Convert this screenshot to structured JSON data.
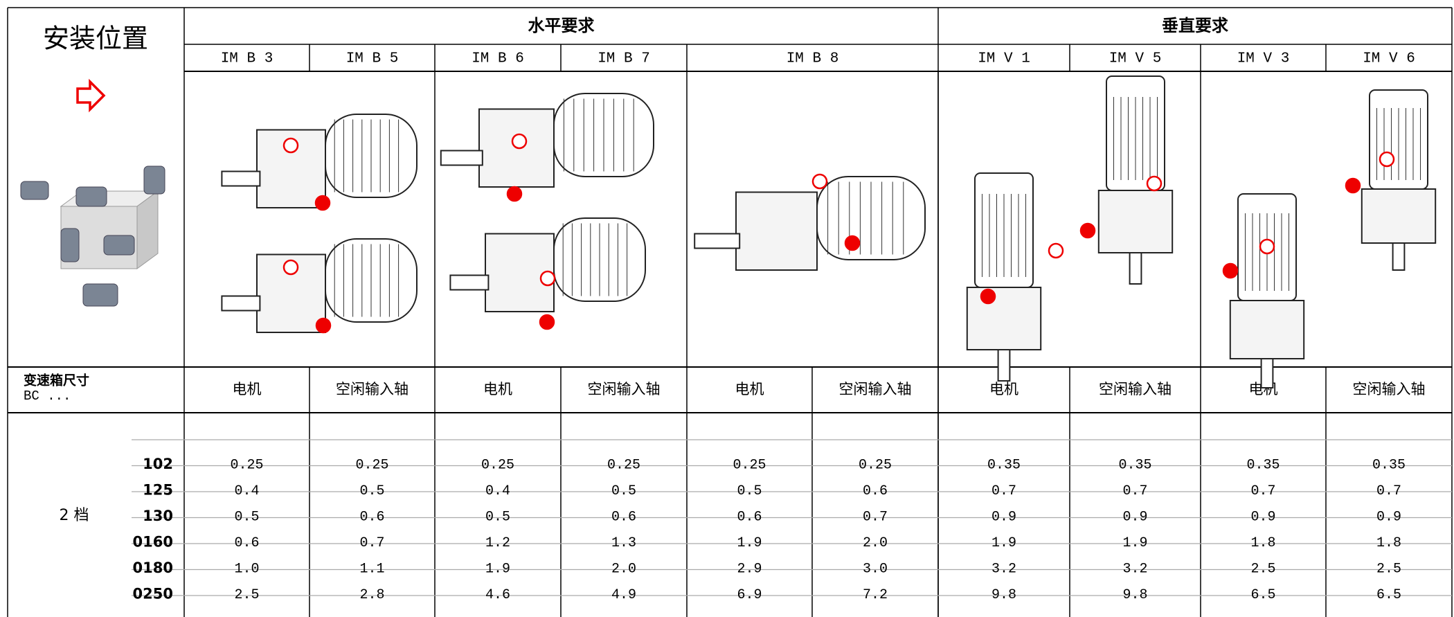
{
  "header": {
    "title": "安装位置",
    "groups": [
      "水平要求",
      "垂直要求"
    ],
    "positions": [
      "IM B 3",
      "IM B 5",
      "IM B 6",
      "IM B 7",
      "IM B 8",
      "IM V 1",
      "IM V 5",
      "IM V 3",
      "IM V 6"
    ]
  },
  "table": {
    "size_label": [
      "变速箱尺寸",
      "BC ..."
    ],
    "columns": [
      "电机",
      "空闲输入轴",
      "电机",
      "空闲输入轴",
      "电机",
      "空闲输入轴",
      "电机",
      "空闲输入轴",
      "电机",
      "空闲输入轴"
    ],
    "stage": "2 档",
    "sizes": [
      "102",
      "125",
      "130",
      "0160",
      "0180",
      "0250"
    ],
    "rows": [
      [
        "0.25",
        "0.25",
        "0.25",
        "0.25",
        "0.25",
        "0.25",
        "0.35",
        "0.35",
        "0.35",
        "0.35"
      ],
      [
        "0.4",
        "0.5",
        "0.4",
        "0.5",
        "0.5",
        "0.6",
        "0.7",
        "0.7",
        "0.7",
        "0.7"
      ],
      [
        "0.5",
        "0.6",
        "0.5",
        "0.6",
        "0.6",
        "0.7",
        "0.9",
        "0.9",
        "0.9",
        "0.9"
      ],
      [
        "0.6",
        "0.7",
        "1.2",
        "1.3",
        "1.9",
        "2.0",
        "1.9",
        "1.9",
        "1.8",
        "1.8"
      ],
      [
        "1.0",
        "1.1",
        "1.9",
        "2.0",
        "2.9",
        "3.0",
        "3.2",
        "3.2",
        "2.5",
        "2.5"
      ],
      [
        "2.5",
        "2.8",
        "4.6",
        "4.9",
        "6.9",
        "7.2",
        "9.8",
        "9.8",
        "6.5",
        "6.5"
      ]
    ]
  }
}
